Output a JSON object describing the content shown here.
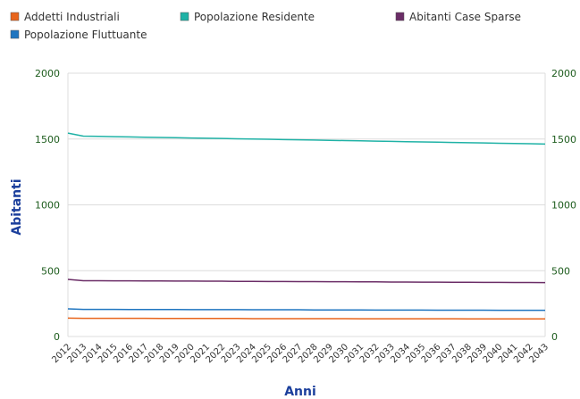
{
  "chart_data": {
    "type": "line",
    "title": "",
    "xlabel": "Anni",
    "ylabel": "Abitanti",
    "ylim": [
      0,
      2000
    ],
    "yticks": [
      0,
      500,
      1000,
      1500,
      2000
    ],
    "secondary_yticks": [
      0,
      500,
      1000,
      1500,
      2000
    ],
    "legend_position": "top-left",
    "grid": true,
    "x": [
      "2012",
      "2013",
      "2014",
      "2015",
      "2016",
      "2017",
      "2018",
      "2019",
      "2020",
      "2021",
      "2022",
      "2023",
      "2024",
      "2025",
      "2026",
      "2027",
      "2028",
      "2029",
      "2030",
      "2031",
      "2032",
      "2033",
      "2034",
      "2035",
      "2036",
      "2037",
      "2038",
      "2039",
      "2040",
      "2041",
      "2042",
      "2043"
    ],
    "series": [
      {
        "name": "Addetti Industriali",
        "color": "#e8651c",
        "values": [
          140,
          138,
          138,
          138,
          138,
          138,
          137,
          137,
          137,
          137,
          137,
          137,
          136,
          136,
          136,
          136,
          136,
          136,
          136,
          135,
          135,
          135,
          135,
          135,
          135,
          135,
          134,
          134,
          134,
          134,
          134,
          134
        ]
      },
      {
        "name": "Popolazione Residente",
        "color": "#1fb2a6",
        "values": [
          1545,
          1522,
          1520,
          1518,
          1516,
          1514,
          1512,
          1510,
          1508,
          1506,
          1504,
          1502,
          1500,
          1498,
          1496,
          1494,
          1492,
          1490,
          1488,
          1486,
          1484,
          1482,
          1480,
          1478,
          1476,
          1474,
          1472,
          1470,
          1468,
          1466,
          1464,
          1462
        ]
      },
      {
        "name": "Abitanti Case Sparse",
        "color": "#6b2d67",
        "values": [
          434,
          424,
          424,
          423,
          423,
          422,
          422,
          421,
          421,
          420,
          420,
          419,
          419,
          418,
          418,
          417,
          417,
          416,
          416,
          415,
          415,
          414,
          414,
          413,
          413,
          412,
          412,
          411,
          411,
          410,
          410,
          409
        ]
      },
      {
        "name": "Popolazione Fluttuante",
        "color": "#1f75c0",
        "values": [
          210,
          206,
          206,
          206,
          205,
          205,
          205,
          205,
          204,
          204,
          204,
          204,
          203,
          203,
          203,
          203,
          202,
          202,
          202,
          202,
          201,
          201,
          201,
          201,
          200,
          200,
          200,
          200,
          199,
          199,
          199,
          199
        ]
      }
    ]
  }
}
